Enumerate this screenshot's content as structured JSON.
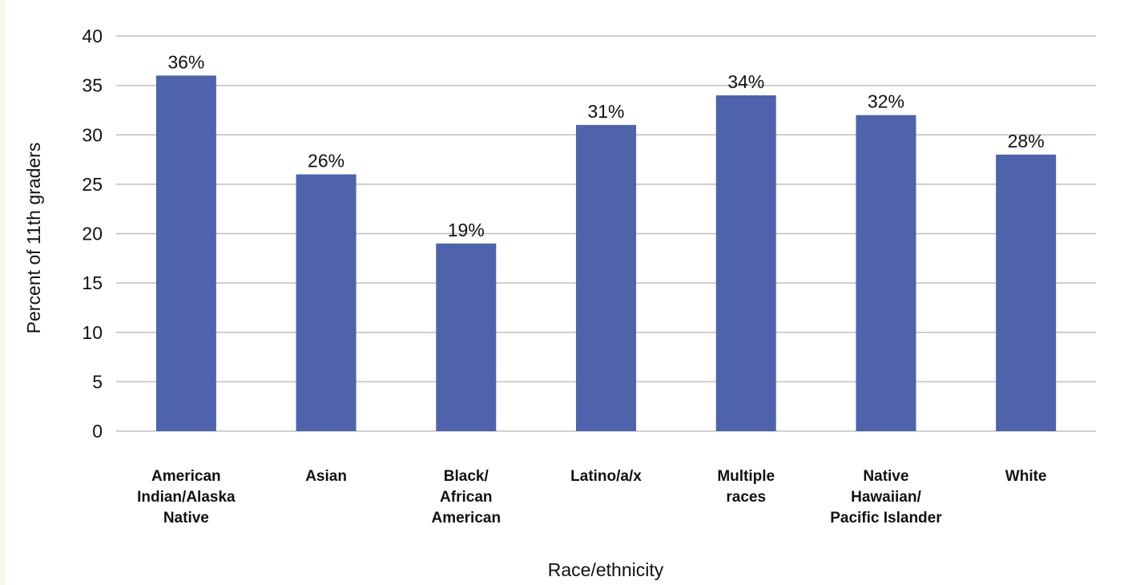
{
  "chart_data": {
    "type": "bar",
    "title": "",
    "xlabel": "Race/ethnicity",
    "ylabel": "Percent of 11th graders",
    "ylim": [
      0,
      40
    ],
    "yticks": [
      0,
      5,
      10,
      15,
      20,
      25,
      30,
      35,
      40
    ],
    "grid": true,
    "legend": "none",
    "bar_color": "#4f63ad",
    "categories": [
      [
        "American",
        "Indian/Alaska",
        "Native"
      ],
      [
        "Asian"
      ],
      [
        "Black/",
        "African",
        "American"
      ],
      [
        "Latino/a/x"
      ],
      [
        "Multiple",
        "races"
      ],
      [
        "Native",
        "Hawaiian/",
        "Pacific Islander"
      ],
      [
        "White"
      ]
    ],
    "values": [
      36,
      26,
      19,
      31,
      34,
      32,
      28
    ],
    "data_labels": [
      "36%",
      "26%",
      "19%",
      "31%",
      "34%",
      "32%",
      "28%"
    ]
  }
}
